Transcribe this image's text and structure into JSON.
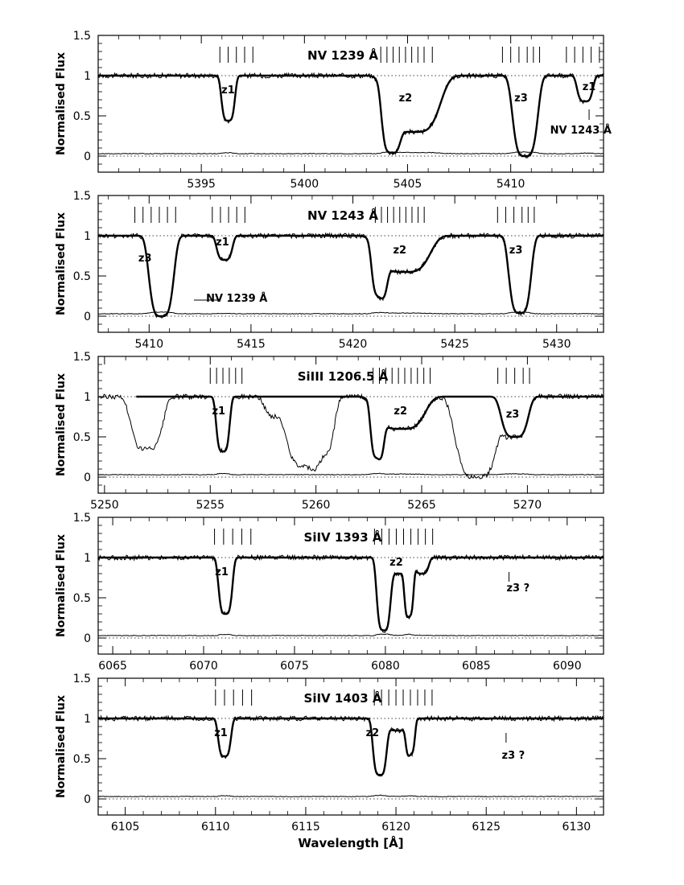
{
  "figure": {
    "ylabel": "Normalised Flux",
    "xlabel": "Wavelength [Å]"
  },
  "chart_data": [
    {
      "type": "line",
      "title": "NV 1239 Å",
      "ylabel": "Normalised Flux",
      "xlim": [
        5390.0,
        5414.5
      ],
      "ylim": [
        -0.2,
        1.5
      ],
      "x_ticks": [
        5395,
        5400,
        5405,
        5410
      ],
      "y_ticks": [
        0,
        0.5,
        1,
        1.5
      ],
      "tick_marks": [
        {
          "x": [
            5395.9,
            5396.3,
            5396.7,
            5397.1,
            5397.5
          ]
        },
        {
          "x": [
            5403.7,
            5404.0,
            5404.3,
            5404.6,
            5404.9,
            5405.2,
            5405.5,
            5405.8,
            5406.2
          ]
        },
        {
          "x": [
            5409.6,
            5410.0,
            5410.4,
            5410.8,
            5411.1,
            5411.4
          ]
        },
        {
          "x": [
            5412.7,
            5413.1,
            5413.5,
            5413.9,
            5414.3
          ]
        }
      ],
      "absorptions": [
        {
          "center": 5396.3,
          "width": 0.28,
          "depth": 0.56,
          "wing": 0.7
        },
        {
          "center": 5404.2,
          "width": 0.35,
          "depth": 0.92,
          "wing": 0.5
        },
        {
          "center": 5405.3,
          "width": 1.0,
          "depth": 0.7,
          "wing": 0.5
        },
        {
          "center": 5410.7,
          "width": 0.5,
          "depth": 1.0,
          "wing": 0.6
        },
        {
          "center": 5413.6,
          "width": 0.3,
          "depth": 0.32,
          "wing": 0.5
        }
      ],
      "model_range": [
        5390.0,
        5414.5
      ],
      "annotations": [
        {
          "text": "z1",
          "x": 5396.3,
          "y": 0.78
        },
        {
          "text": "z2",
          "x": 5404.9,
          "y": 0.68
        },
        {
          "text": "z3",
          "x": 5410.5,
          "y": 0.68
        },
        {
          "text": "z1",
          "x": 5413.8,
          "y": 0.82
        },
        {
          "text": "NV  1243 Å",
          "x": 5413.4,
          "y": 0.28
        }
      ],
      "markers": [
        {
          "x": 5413.8,
          "y_top": 0.58,
          "y_bottom": 0.45
        }
      ],
      "label_lines": []
    },
    {
      "type": "line",
      "title": "NV 1243 Å",
      "ylabel": "Normalised Flux",
      "xlim": [
        5407.5,
        5432.3
      ],
      "ylim": [
        -0.2,
        1.5
      ],
      "x_ticks": [
        5410,
        5415,
        5420,
        5425,
        5430
      ],
      "y_ticks": [
        0,
        0.5,
        1,
        1.5
      ],
      "tick_marks": [
        {
          "x": [
            5409.3,
            5409.7,
            5410.1,
            5410.5,
            5410.9,
            5411.3
          ]
        },
        {
          "x": [
            5413.1,
            5413.5,
            5413.9,
            5414.3,
            5414.7
          ]
        },
        {
          "x": [
            5421.1,
            5421.4,
            5421.7,
            5422.0,
            5422.3,
            5422.6,
            5422.9,
            5423.2,
            5423.5
          ]
        },
        {
          "x": [
            5427.1,
            5427.5,
            5427.9,
            5428.3,
            5428.6,
            5428.9
          ]
        }
      ],
      "absorptions": [
        {
          "center": 5410.6,
          "width": 0.5,
          "depth": 1.0,
          "wing": 0.6
        },
        {
          "center": 5413.7,
          "width": 0.3,
          "depth": 0.3,
          "wing": 0.5
        },
        {
          "center": 5421.3,
          "width": 0.3,
          "depth": 0.68,
          "wing": 0.5
        },
        {
          "center": 5422.5,
          "width": 1.0,
          "depth": 0.45,
          "wing": 0.5
        },
        {
          "center": 5428.2,
          "width": 0.45,
          "depth": 0.96,
          "wing": 0.6
        }
      ],
      "model_range": [
        5407.5,
        5432.3
      ],
      "annotations": [
        {
          "text": "z3",
          "x": 5409.8,
          "y": 0.68
        },
        {
          "text": "z1",
          "x": 5413.6,
          "y": 0.88
        },
        {
          "text": "z2",
          "x": 5422.3,
          "y": 0.78
        },
        {
          "text": "z3",
          "x": 5428.0,
          "y": 0.78
        },
        {
          "text": "NV  1239 Å",
          "x": 5414.3,
          "y": 0.18
        }
      ],
      "markers": [],
      "label_lines": [
        {
          "x1": 5412.2,
          "x2": 5413.4,
          "y": 0.2
        }
      ]
    },
    {
      "type": "line",
      "title": "SiIII  1206.5 Å",
      "ylabel": "Normalised Flux",
      "xlim": [
        5249.7,
        5273.6
      ],
      "ylim": [
        -0.2,
        1.5
      ],
      "x_ticks": [
        5250,
        5255,
        5260,
        5265,
        5270
      ],
      "y_ticks": [
        0,
        0.5,
        1,
        1.5
      ],
      "tick_marks": [
        {
          "x": [
            5255.0,
            5255.3,
            5255.6,
            5255.9,
            5256.2,
            5256.5
          ]
        },
        {
          "x": [
            5262.7,
            5263.0,
            5263.3,
            5263.6,
            5263.9,
            5264.2,
            5264.5,
            5264.8,
            5265.1,
            5265.4
          ]
        },
        {
          "x": [
            5268.6,
            5269.0,
            5269.4,
            5269.8,
            5270.1
          ]
        }
      ],
      "absorptions": [
        {
          "center": 5255.6,
          "width": 0.25,
          "depth": 0.68,
          "wing": 0.5
        },
        {
          "center": 5262.9,
          "width": 0.25,
          "depth": 0.7,
          "wing": 0.5
        },
        {
          "center": 5264.0,
          "width": 0.9,
          "depth": 0.4,
          "wing": 0.5
        },
        {
          "center": 5269.4,
          "width": 0.5,
          "depth": 0.5,
          "wing": 0.5
        }
      ],
      "model_range": [
        5251.5,
        5273.6
      ],
      "contaminants": [
        {
          "center": 5252.0,
          "width": 0.6,
          "depth": 0.65
        },
        {
          "center": 5259.4,
          "width": 0.6,
          "depth": 0.85
        },
        {
          "center": 5260.3,
          "width": 0.45,
          "depth": 0.7
        },
        {
          "center": 5258.2,
          "width": 0.5,
          "depth": 0.25
        },
        {
          "center": 5267.6,
          "width": 0.8,
          "depth": 1.0
        }
      ],
      "annotations": [
        {
          "text": "z1",
          "x": 5255.4,
          "y": 0.78
        },
        {
          "text": "z2",
          "x": 5264.0,
          "y": 0.78
        },
        {
          "text": "z3",
          "x": 5269.3,
          "y": 0.74
        }
      ],
      "markers": [],
      "label_lines": []
    },
    {
      "type": "line",
      "title": "SiIV  1393 Å",
      "ylabel": "Normalised Flux",
      "xlim": [
        6064.2,
        6092.0
      ],
      "ylim": [
        -0.2,
        1.5
      ],
      "x_ticks": [
        6065,
        6070,
        6075,
        6080,
        6085,
        6090
      ],
      "y_ticks": [
        0,
        0.5,
        1,
        1.5
      ],
      "tick_marks": [
        {
          "x": [
            6070.6,
            6071.1,
            6071.6,
            6072.1,
            6072.6
          ]
        },
        {
          "x": [
            6079.4,
            6079.8,
            6080.2,
            6080.6,
            6081.0,
            6081.4,
            6081.8,
            6082.2,
            6082.6
          ]
        }
      ],
      "absorptions": [
        {
          "center": 6071.2,
          "width": 0.3,
          "depth": 0.7,
          "wing": 0.5
        },
        {
          "center": 6079.9,
          "width": 0.3,
          "depth": 0.9,
          "wing": 0.5
        },
        {
          "center": 6081.3,
          "width": 0.2,
          "depth": 0.7,
          "wing": 0.5
        },
        {
          "center": 6080.7,
          "width": 0.5,
          "depth": 0.2,
          "wing": 0.5
        },
        {
          "center": 6082.0,
          "width": 0.3,
          "depth": 0.2,
          "wing": 0.5
        }
      ],
      "model_range": [
        6064.2,
        6092.0
      ],
      "annotations": [
        {
          "text": "z1",
          "x": 6071.0,
          "y": 0.78
        },
        {
          "text": "z2",
          "x": 6080.6,
          "y": 0.9
        },
        {
          "text": "z3 ?",
          "x": 6087.3,
          "y": 0.58
        }
      ],
      "markers": [
        {
          "x": 6086.8,
          "y_top": 0.82,
          "y_bottom": 0.7
        }
      ],
      "label_lines": []
    },
    {
      "type": "line",
      "title": "SiIV  1403 Å",
      "ylabel": "Normalised Flux",
      "xlabel": "Wavelength [Å]",
      "xlim": [
        6103.5,
        6131.5
      ],
      "ylim": [
        -0.2,
        1.5
      ],
      "x_ticks": [
        6105,
        6110,
        6115,
        6120,
        6125,
        6130
      ],
      "y_ticks": [
        0,
        0.5,
        1,
        1.5
      ],
      "tick_marks": [
        {
          "x": [
            6110.0,
            6110.5,
            6111.0,
            6111.5,
            6112.0
          ]
        },
        {
          "x": [
            6118.8,
            6119.2,
            6119.6,
            6120.0,
            6120.4,
            6120.8,
            6121.2,
            6121.6,
            6122.0
          ]
        }
      ],
      "absorptions": [
        {
          "center": 6110.5,
          "width": 0.28,
          "depth": 0.47,
          "wing": 0.5
        },
        {
          "center": 6119.1,
          "width": 0.3,
          "depth": 0.7,
          "wing": 0.5
        },
        {
          "center": 6120.8,
          "width": 0.2,
          "depth": 0.42,
          "wing": 0.5
        },
        {
          "center": 6120.1,
          "width": 0.5,
          "depth": 0.15,
          "wing": 0.5
        }
      ],
      "model_range": [
        6103.5,
        6131.5
      ],
      "annotations": [
        {
          "text": "z1",
          "x": 6110.3,
          "y": 0.78
        },
        {
          "text": "z2",
          "x": 6118.7,
          "y": 0.78
        },
        {
          "text": "z3 ?",
          "x": 6126.5,
          "y": 0.5
        }
      ],
      "markers": [
        {
          "x": 6126.1,
          "y_top": 0.82,
          "y_bottom": 0.7
        }
      ],
      "label_lines": []
    }
  ]
}
